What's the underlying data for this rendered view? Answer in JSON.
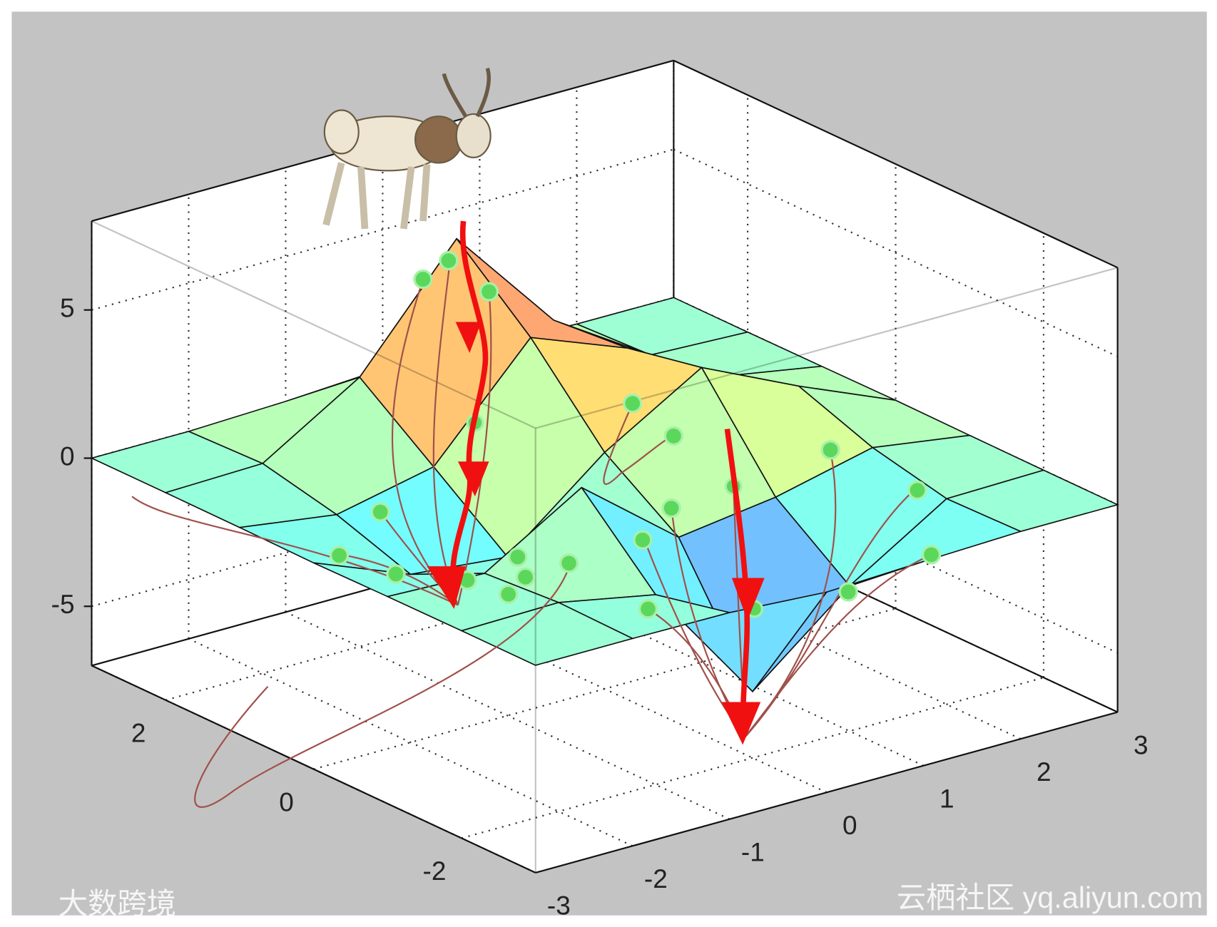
{
  "chart_data": {
    "type": "surface",
    "x": [
      -3,
      -2,
      -1,
      0,
      1,
      2,
      3
    ],
    "y": [
      -3,
      -2,
      -1,
      0,
      1,
      2,
      3
    ],
    "z": [
      [
        0,
        0,
        -0.03,
        -0.24,
        -0.11,
        0,
        0
      ],
      [
        0,
        0.05,
        -0.59,
        -4.76,
        -2.1,
        -0.06,
        0
      ],
      [
        -0.01,
        -0.13,
        1.86,
        -0.72,
        -0.27,
        0.5,
        0.01
      ],
      [
        -0.04,
        -1.33,
        -1.65,
        0.98,
        2.94,
        1.41,
        0.03
      ],
      [
        -0.01,
        -0.48,
        0.23,
        3.69,
        2.43,
        0.58,
        0.01
      ],
      [
        0,
        0.08,
        2.09,
        5.86,
        2.21,
        0.13,
        0
      ],
      [
        0,
        0,
        0.11,
        0.3,
        0.11,
        0.01,
        0
      ]
    ],
    "xlim": [
      -3,
      3
    ],
    "ylim": [
      -3,
      3
    ],
    "zlim": [
      -7,
      8
    ],
    "xticks": [
      -3,
      -2,
      -1,
      0,
      1,
      2,
      3
    ],
    "yticks": [
      -2,
      0,
      2
    ],
    "zticks": [
      -5,
      0,
      5
    ],
    "grid": true
  },
  "watermarks": [
    "大数跨境",
    "云栖社区 yq.aliyun.com"
  ]
}
